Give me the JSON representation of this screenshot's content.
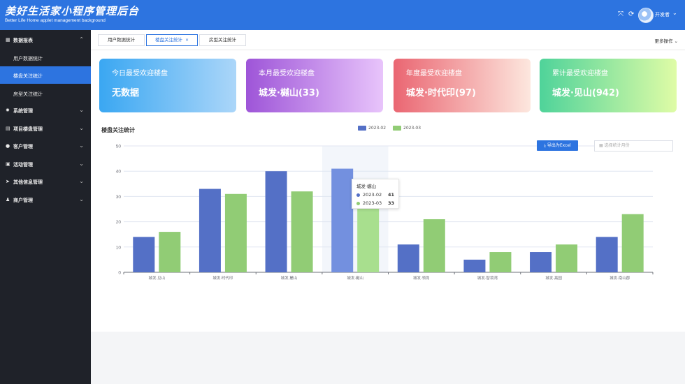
{
  "header": {
    "title": "美好生活家小程序管理后台",
    "subtitle": "Better Life Home applet management background",
    "user_name": "开发者",
    "icons": {
      "fullscreen": "fullscreen-icon",
      "refresh": "refresh-icon",
      "chevron": "chevron-down-icon"
    }
  },
  "sidebar": {
    "groups": [
      {
        "label": "数据报表",
        "icon": "chart-icon",
        "expanded": true,
        "items": [
          {
            "label": "用户数据统计"
          },
          {
            "label": "楼盘关注统计"
          },
          {
            "label": "房型关注统计"
          }
        ]
      },
      {
        "label": "系统管理",
        "icon": "gear-icon"
      },
      {
        "label": "项目楼盘管理",
        "icon": "building-icon"
      },
      {
        "label": "客户管理",
        "icon": "customers-icon"
      },
      {
        "label": "活动管理",
        "icon": "event-icon"
      },
      {
        "label": "其他信息管理",
        "icon": "send-icon"
      },
      {
        "label": "商户管理",
        "icon": "merchant-icon"
      }
    ],
    "active_item": "楼盘关注统计"
  },
  "tabs": {
    "items": [
      {
        "label": "用户数据统计"
      },
      {
        "label": "楼盘关注统计",
        "close": "×"
      },
      {
        "label": "房型关注统计"
      }
    ],
    "active": 1,
    "more_ops": "更多操作"
  },
  "cards": [
    {
      "title": "今日最受欢迎楼盘",
      "value": "无数据"
    },
    {
      "title": "本月最受欢迎楼盘",
      "value": "城发·樾山(33)"
    },
    {
      "title": "年度最受欢迎楼盘",
      "value": "城发·时代印(97)"
    },
    {
      "title": "累计最受欢迎楼盘",
      "value": "城发·见山(942)"
    }
  ],
  "chart_section": {
    "title": "楼盘关注统计",
    "export_label": "导出为Excel",
    "month_placeholder": "选择统计月份"
  },
  "tooltip": {
    "title": "城发·樾山",
    "rows": [
      {
        "name": "2023-02",
        "value": "41"
      },
      {
        "name": "2023-03",
        "value": "33"
      }
    ]
  },
  "colors": {
    "primary": "#2d74e0",
    "series_a": "#5470c6",
    "series_b": "#91cc75",
    "sidebar_bg": "#1f2229"
  },
  "chart_data": {
    "type": "bar",
    "categories": [
      "城发·见山",
      "城发·时代印",
      "城发·麓山",
      "城发·樾山",
      "城发·领尚",
      "城发·智境湾",
      "城发·熹园",
      "城发·南山郡"
    ],
    "series": [
      {
        "name": "2023-02",
        "values": [
          14,
          33,
          40,
          41,
          11,
          5,
          8,
          14
        ]
      },
      {
        "name": "2023-03",
        "values": [
          16,
          31,
          32,
          33,
          21,
          8,
          11,
          23
        ]
      }
    ],
    "ylim": [
      0,
      50
    ],
    "yticks": [
      0,
      10,
      20,
      30,
      40,
      50
    ],
    "grid": true,
    "legend": "top-center",
    "highlighted_category": "城发·樾山"
  }
}
